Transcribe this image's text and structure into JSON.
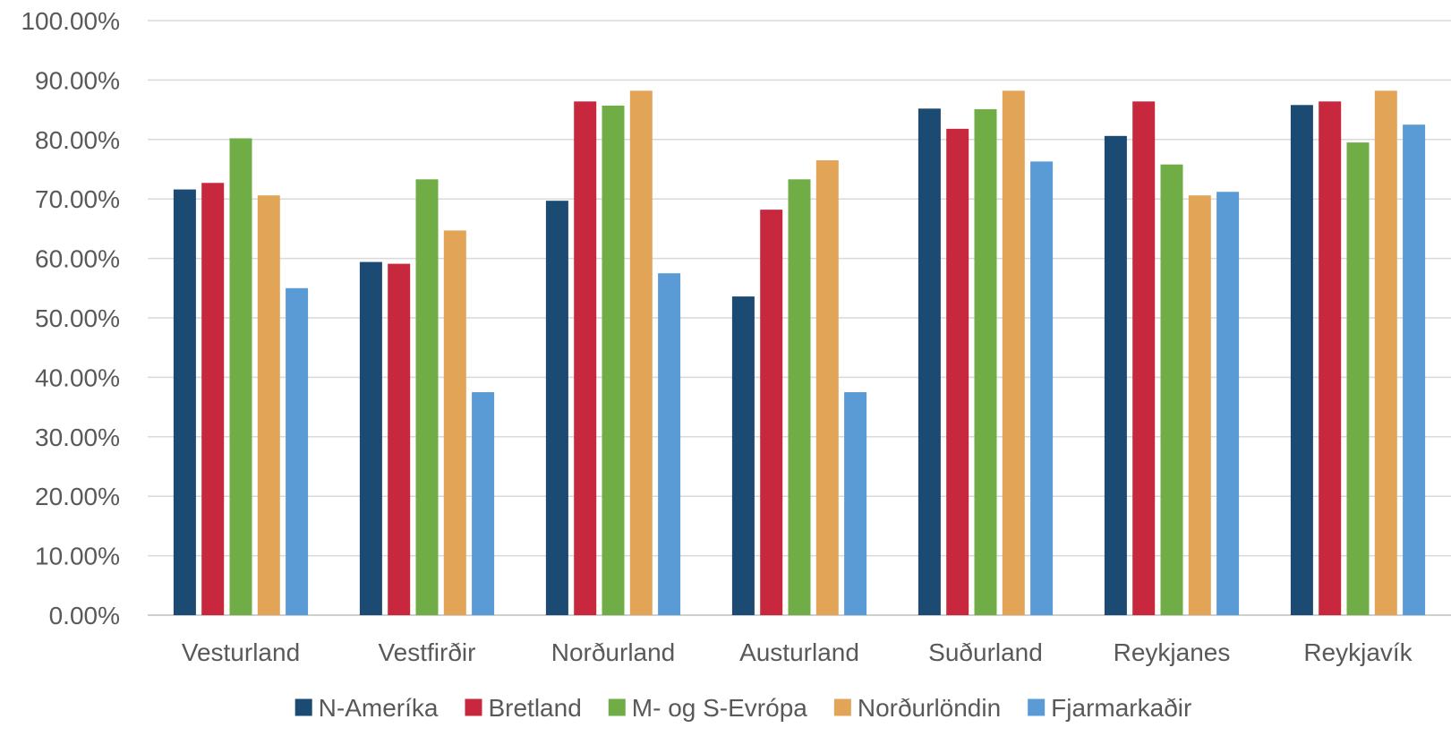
{
  "chart_data": {
    "type": "bar",
    "categories": [
      "Vesturland",
      "Vestfirðir",
      "Norðurland",
      "Austurland",
      "Suðurland",
      "Reykjanes",
      "Reykjavík"
    ],
    "series": [
      {
        "name": "N-Ameríka",
        "color": "#1b4a73",
        "values": [
          71.6,
          59.4,
          69.7,
          53.6,
          85.2,
          80.6,
          85.8
        ]
      },
      {
        "name": "Bretland",
        "color": "#c8283d",
        "values": [
          72.7,
          59.1,
          86.4,
          68.2,
          81.8,
          86.4,
          86.4
        ]
      },
      {
        "name": "M- og S-Evrópa",
        "color": "#70ad47",
        "values": [
          80.2,
          73.3,
          85.7,
          73.3,
          85.1,
          75.8,
          79.5
        ]
      },
      {
        "name": "Norðurlöndin",
        "color": "#e2a558",
        "values": [
          70.6,
          64.7,
          88.2,
          76.5,
          88.2,
          70.6,
          88.2
        ]
      },
      {
        "name": "Fjarmarkaðir",
        "color": "#5b9bd5",
        "values": [
          55.0,
          37.5,
          57.5,
          37.5,
          76.3,
          71.2,
          82.5
        ]
      }
    ],
    "yticks": [
      "0.00%",
      "10.00%",
      "20.00%",
      "30.00%",
      "40.00%",
      "50.00%",
      "60.00%",
      "70.00%",
      "80.00%",
      "90.00%",
      "100.00%"
    ],
    "ylim": [
      0,
      100
    ],
    "grid": true,
    "legend_position": "bottom"
  }
}
